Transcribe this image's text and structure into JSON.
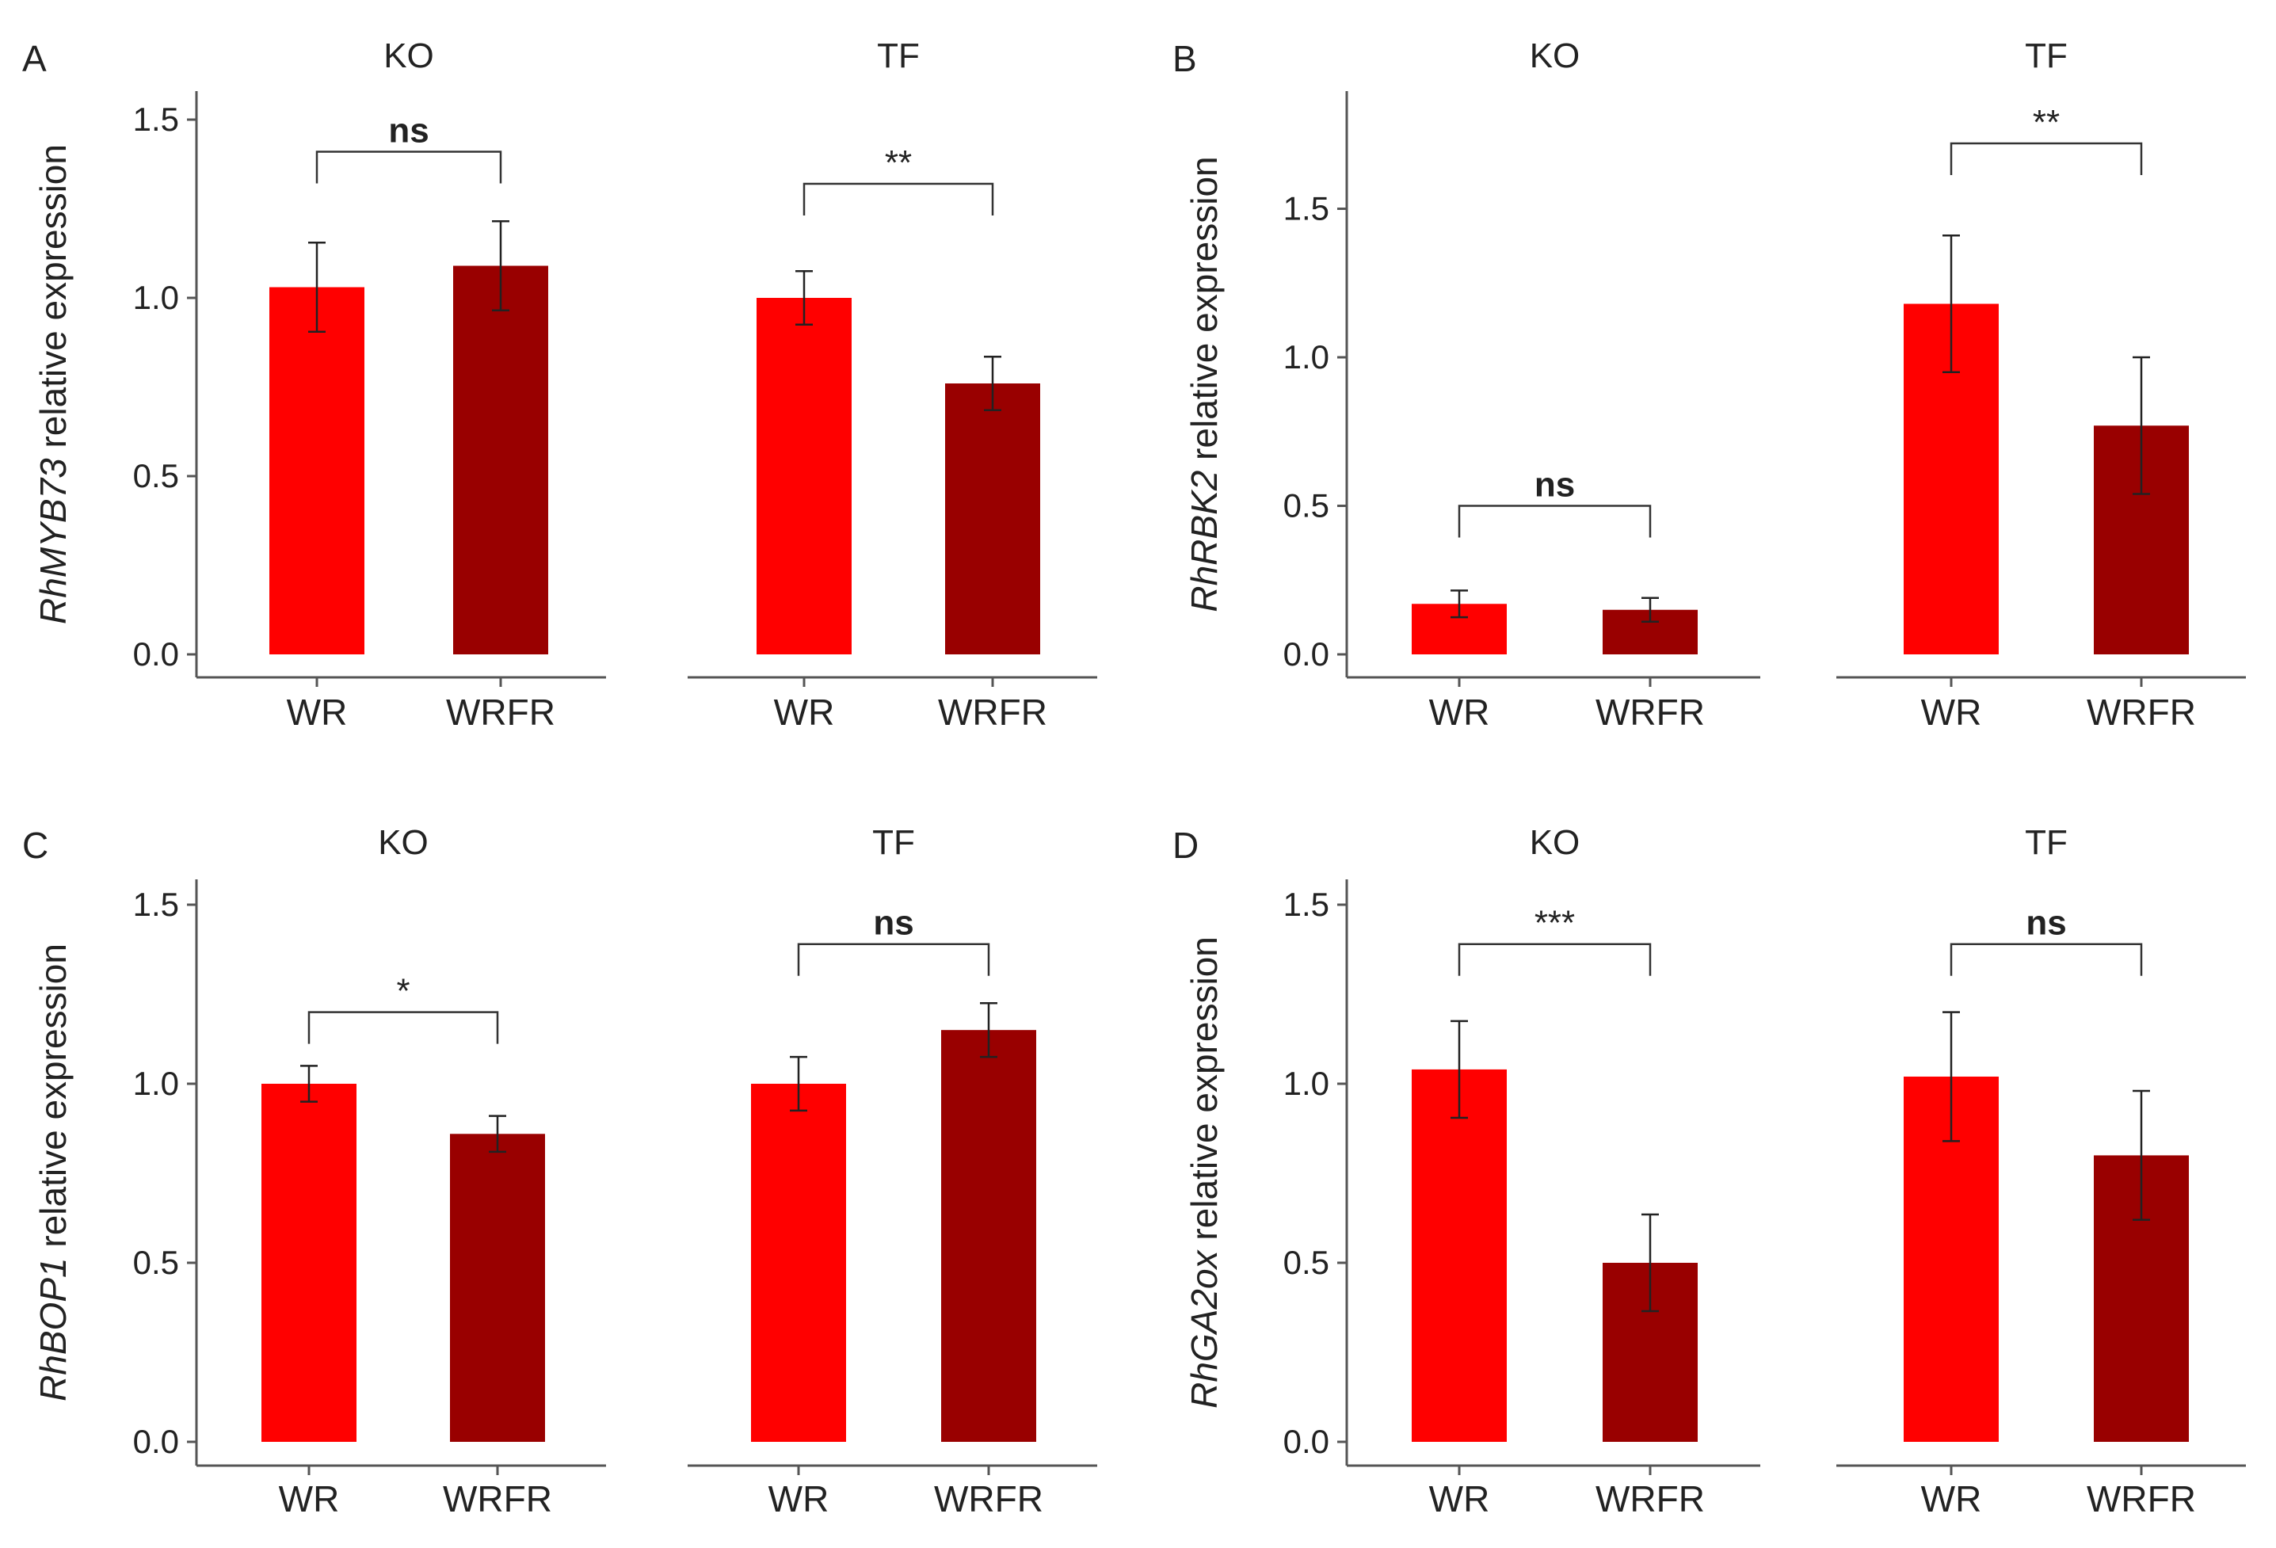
{
  "colors": {
    "WR": "#ff0000",
    "WRFR": "#990000"
  },
  "chart_data": [
    {
      "type": "bar",
      "panel": "A",
      "ylabel_gene": "RhMYB73",
      "ylabel_rest": " relative expression",
      "ylim": [
        0,
        1.55
      ],
      "yticks": [
        "0.0",
        "0.5",
        "1.0",
        "1.5"
      ],
      "ytick_values": [
        0,
        0.5,
        1.0,
        1.5
      ],
      "facets": [
        {
          "title": "KO",
          "categories": [
            "WR",
            "WRFR"
          ],
          "values": [
            1.03,
            1.09
          ],
          "errors": [
            0.125,
            0.125
          ],
          "significance": "ns",
          "bracket_y": 1.41
        },
        {
          "title": "TF",
          "categories": [
            "WR",
            "WRFR"
          ],
          "values": [
            1.0,
            0.76
          ],
          "errors": [
            0.075,
            0.075
          ],
          "significance": "**",
          "bracket_y": 1.32
        }
      ]
    },
    {
      "type": "bar",
      "panel": "B",
      "ylabel_gene": "RhRBK2",
      "ylabel_rest": " relative expression",
      "ylim": [
        0,
        1.9
      ],
      "yticks": [
        "0.0",
        "0.5",
        "1.0",
        "1.5"
      ],
      "ytick_values": [
        0,
        0.5,
        1.0,
        1.5
      ],
      "facets": [
        {
          "title": "KO",
          "categories": [
            "WR",
            "WRFR"
          ],
          "values": [
            0.17,
            0.15
          ],
          "errors": [
            0.045,
            0.04
          ],
          "significance": "ns",
          "bracket_y": 0.5
        },
        {
          "title": "TF",
          "categories": [
            "WR",
            "WRFR"
          ],
          "values": [
            1.18,
            0.77
          ],
          "errors": [
            0.23,
            0.23
          ],
          "significance": "**",
          "bracket_y": 1.72
        }
      ]
    },
    {
      "type": "bar",
      "panel": "C",
      "ylabel_gene": "RhBOP1",
      "ylabel_rest": " relative expression",
      "ylim": [
        0,
        1.55
      ],
      "yticks": [
        "0.0",
        "0.5",
        "1.0",
        "1.5"
      ],
      "ytick_values": [
        0,
        0.5,
        1.0,
        1.5
      ],
      "facets": [
        {
          "title": "KO",
          "categories": [
            "WR",
            "WRFR"
          ],
          "values": [
            1.0,
            0.86
          ],
          "errors": [
            0.05,
            0.05
          ],
          "significance": "*",
          "bracket_y": 1.2
        },
        {
          "title": "TF",
          "categories": [
            "WR",
            "WRFR"
          ],
          "values": [
            1.0,
            1.15
          ],
          "errors": [
            0.075,
            0.075
          ],
          "significance": "ns",
          "bracket_y": 1.39
        }
      ]
    },
    {
      "type": "bar",
      "panel": "D",
      "ylabel_gene": "RhGA2ox",
      "ylabel_rest": " relative expression",
      "ylim": [
        0,
        1.55
      ],
      "yticks": [
        "0.0",
        "0.5",
        "1.0",
        "1.5"
      ],
      "ytick_values": [
        0,
        0.5,
        1.0,
        1.5
      ],
      "facets": [
        {
          "title": "KO",
          "categories": [
            "WR",
            "WRFR"
          ],
          "values": [
            1.04,
            0.5
          ],
          "errors": [
            0.135,
            0.135
          ],
          "significance": "***",
          "bracket_y": 1.39
        },
        {
          "title": "TF",
          "categories": [
            "WR",
            "WRFR"
          ],
          "values": [
            1.02,
            0.8
          ],
          "errors": [
            0.18,
            0.18
          ],
          "significance": "ns",
          "bracket_y": 1.39
        }
      ]
    }
  ]
}
